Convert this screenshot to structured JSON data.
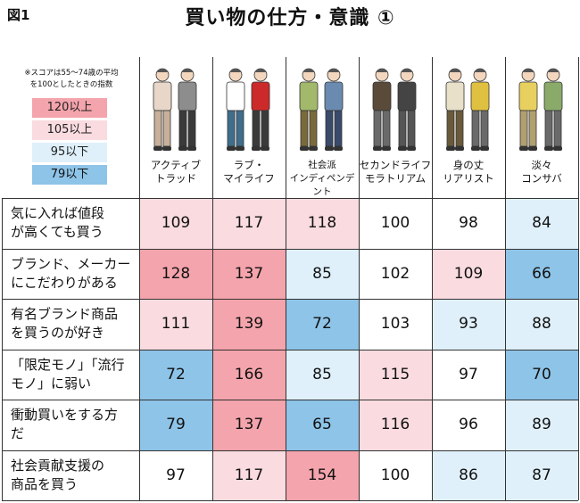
{
  "figure_label": "図1",
  "title": "買い物の仕方・意識 ①",
  "legend": {
    "note": "※スコアは55〜74歳の平均\nを100としたときの指数",
    "items": [
      {
        "label": "120以上",
        "color": "#f4a4ac"
      },
      {
        "label": "105以上",
        "color": "#f9dbe0"
      },
      {
        "label": "95以下",
        "color": "#dff0fb"
      },
      {
        "label": "79以下",
        "color": "#8ec4e8"
      }
    ]
  },
  "chart_data": {
    "type": "table",
    "title": "買い物の仕方・意識 ①",
    "columns": [
      "アクティブ\nトラッド",
      "ラブ・\nマイライフ",
      "社会派\nインディペンデント",
      "セカンドライフ\nモラトリアム",
      "身の丈\nリアリスト",
      "淡々\nコンサバ"
    ],
    "rows": [
      {
        "label": "気に入れば値段\nが高くても買う",
        "values": [
          109,
          117,
          118,
          100,
          98,
          84
        ]
      },
      {
        "label": "ブランド、メーカー\nにこだわりがある",
        "values": [
          128,
          137,
          85,
          102,
          109,
          66
        ]
      },
      {
        "label": "有名ブランド商品\nを買うのが好き",
        "values": [
          111,
          139,
          72,
          103,
          93,
          88
        ]
      },
      {
        "label": "「限定モノ」「流行\nモノ」に弱い",
        "values": [
          72,
          166,
          85,
          115,
          97,
          70
        ]
      },
      {
        "label": "衝動買いをする方\nだ",
        "values": [
          79,
          137,
          65,
          116,
          96,
          89
        ]
      },
      {
        "label": "社会貢献支援の\n商品を買う",
        "values": [
          97,
          117,
          154,
          100,
          86,
          87
        ]
      }
    ]
  }
}
